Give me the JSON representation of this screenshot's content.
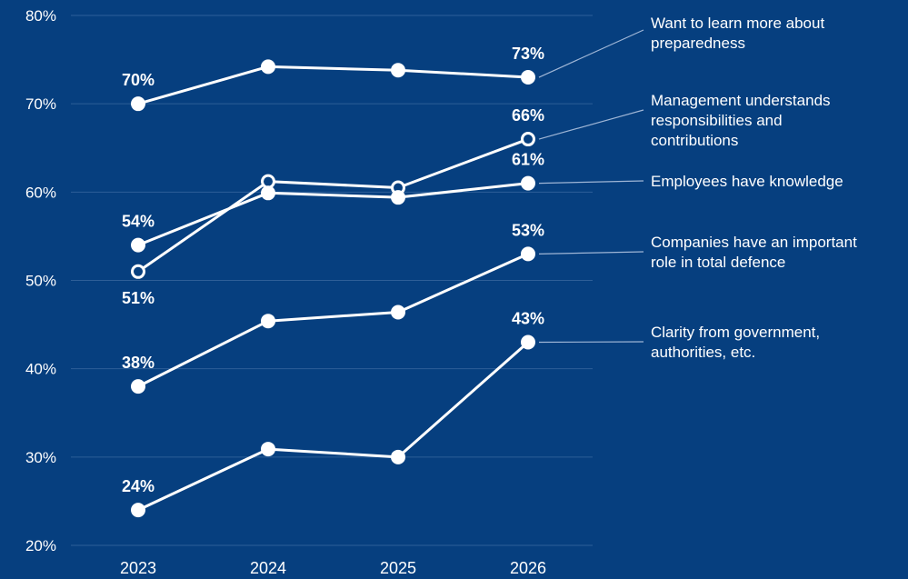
{
  "chart_data": {
    "type": "line",
    "title": "",
    "xlabel": "",
    "ylabel": "",
    "x": [
      "2023",
      "2024",
      "2025",
      "2026"
    ],
    "ylim": [
      20,
      80
    ],
    "yticks": [
      20,
      30,
      40,
      50,
      60,
      70,
      80
    ],
    "ytick_labels": [
      "20%",
      "30%",
      "40%",
      "50%",
      "60%",
      "70%",
      "80%"
    ],
    "grid": true,
    "legend": "right, labels connected to line ends",
    "colors": {
      "background": "#063f7f",
      "line": "#ffffff",
      "grid": "#2e5f98",
      "leader": "#9fb6d6"
    },
    "series": [
      {
        "name": "Want to learn more about preparedness",
        "legend_lines": [
          "Want to learn more about",
          "preparedness"
        ],
        "values": [
          70,
          74.2,
          73.8,
          73
        ],
        "marker": "filled",
        "data_labels": [
          {
            "index": 0,
            "text": "70%",
            "pos": "above"
          },
          {
            "index": 3,
            "text": "73%",
            "pos": "above"
          }
        ]
      },
      {
        "name": "Management understands responsibilities and contributions",
        "legend_lines": [
          "Management understands",
          "responsibilities and",
          "contributions"
        ],
        "values": [
          51,
          61.2,
          60.5,
          66
        ],
        "marker": "hollow",
        "data_labels": [
          {
            "index": 0,
            "text": "51%",
            "pos": "below"
          },
          {
            "index": 3,
            "text": "66%",
            "pos": "above"
          }
        ]
      },
      {
        "name": "Employees have knowledge",
        "legend_lines": [
          "Employees have knowledge"
        ],
        "values": [
          54,
          59.9,
          59.4,
          61
        ],
        "marker": "filled",
        "data_labels": [
          {
            "index": 0,
            "text": "54%",
            "pos": "above"
          },
          {
            "index": 3,
            "text": "61%",
            "pos": "above"
          }
        ]
      },
      {
        "name": "Companies have an important role in total defence",
        "legend_lines": [
          "Companies have an important",
          "role in total defence"
        ],
        "values": [
          38,
          45.4,
          46.4,
          53
        ],
        "marker": "filled",
        "data_labels": [
          {
            "index": 0,
            "text": "38%",
            "pos": "above"
          },
          {
            "index": 3,
            "text": "53%",
            "pos": "above"
          }
        ]
      },
      {
        "name": "Clarity from government, authorities, etc.",
        "legend_lines": [
          "Clarity from government,",
          "authorities, etc."
        ],
        "values": [
          24,
          30.9,
          30,
          43
        ],
        "marker": "filled",
        "data_labels": [
          {
            "index": 0,
            "text": "24%",
            "pos": "above"
          },
          {
            "index": 3,
            "text": "43%",
            "pos": "above"
          }
        ]
      }
    ]
  }
}
